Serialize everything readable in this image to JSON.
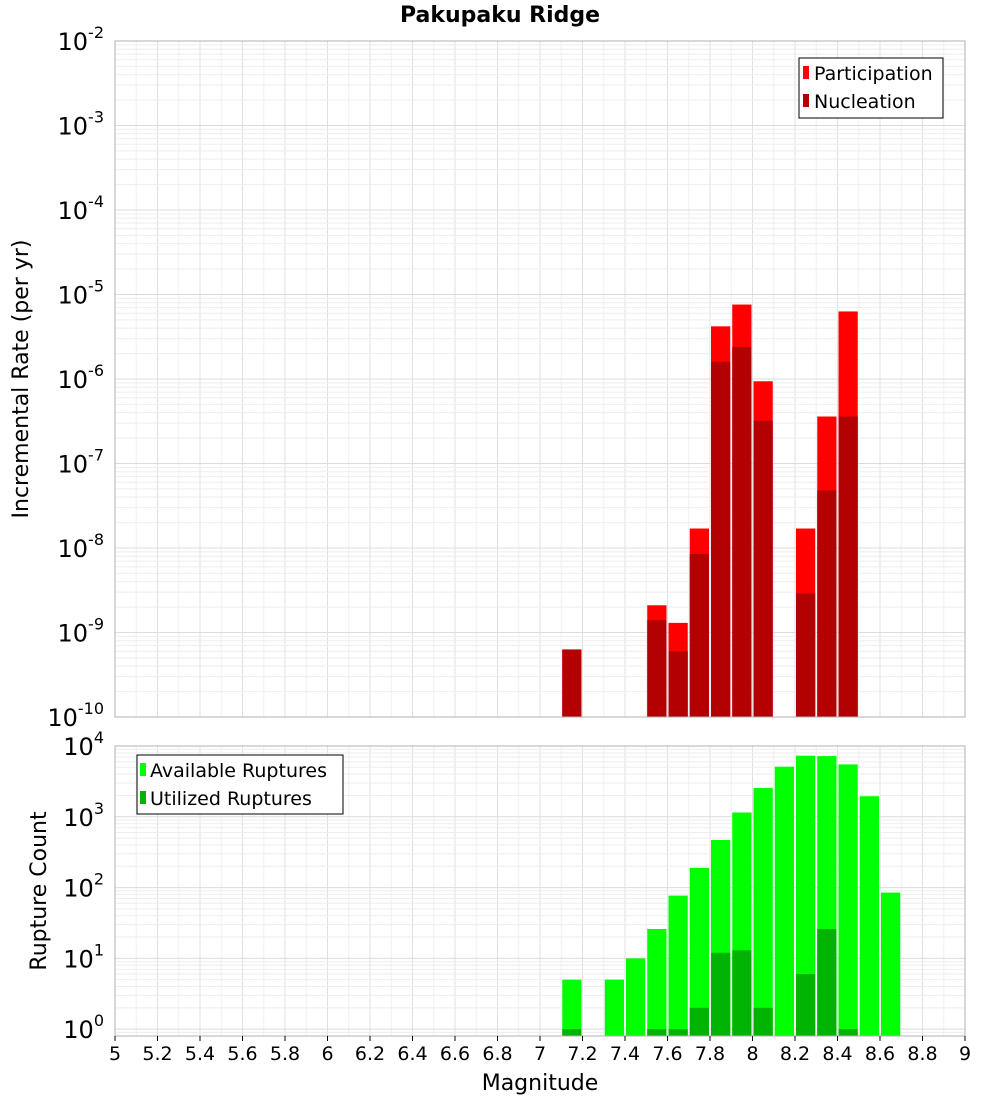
{
  "title": "Pakupaku Ridge",
  "colors": {
    "participation": "#ff0000",
    "nucleation": "#b30000",
    "available": "#00ff00",
    "utilized": "#00b300",
    "grid": "#e6e6e6",
    "frame": "#b0b0b0"
  },
  "chart_data": [
    {
      "type": "bar",
      "ylabel": "Incremental Rate (per yr)",
      "yscale": "log",
      "ylim": [
        1e-10,
        0.01
      ],
      "grid": true,
      "legend_placement": "top-right",
      "y_tick_exponents": [
        "-2",
        "-3",
        "-4",
        "-5",
        "-6",
        "-7",
        "-8",
        "-9",
        "-10"
      ],
      "series": [
        {
          "name": "Participation",
          "x": [
            7.15,
            7.55,
            7.65,
            7.75,
            7.85,
            7.95,
            8.05,
            8.25,
            8.35,
            8.45
          ],
          "values": [
            6.3e-10,
            2.1e-09,
            1.3e-09,
            1.7e-08,
            4.2e-06,
            7.6e-06,
            9.4e-07,
            1.7e-08,
            3.6e-07,
            6.3e-06
          ]
        },
        {
          "name": "Nucleation",
          "x": [
            7.15,
            7.55,
            7.65,
            7.75,
            7.85,
            7.95,
            8.05,
            8.25,
            8.35,
            8.45
          ],
          "values": [
            6.3e-10,
            1.4e-09,
            6e-10,
            8.5e-09,
            1.6e-06,
            2.4e-06,
            3.2e-07,
            2.9e-09,
            4.8e-08,
            3.6e-07
          ]
        }
      ]
    },
    {
      "type": "bar",
      "xlabel": "Magnitude",
      "ylabel": "Rupture Count",
      "yscale": "log",
      "ylim": [
        0.8,
        10000
      ],
      "xlim": [
        5,
        9
      ],
      "grid": true,
      "legend_placement": "top-left",
      "x_ticks": [
        "5",
        "5.2",
        "5.4",
        "5.6",
        "5.8",
        "6",
        "6.2",
        "6.4",
        "6.6",
        "6.8",
        "7",
        "7.2",
        "7.4",
        "7.6",
        "7.8",
        "8",
        "8.2",
        "8.4",
        "8.6",
        "8.8",
        "9"
      ],
      "y_tick_exponents": [
        "0",
        "1",
        "2",
        "3",
        "4"
      ],
      "series": [
        {
          "name": "Available Ruptures",
          "x": [
            7.15,
            7.35,
            7.45,
            7.55,
            7.65,
            7.75,
            7.85,
            7.95,
            8.05,
            8.15,
            8.25,
            8.35,
            8.45,
            8.55,
            8.65
          ],
          "values": [
            5,
            5,
            10,
            26,
            77,
            190,
            470,
            1150,
            2550,
            5100,
            7300,
            7200,
            5500,
            1950,
            85
          ]
        },
        {
          "name": "Utilized Ruptures",
          "x": [
            7.15,
            7.55,
            7.65,
            7.75,
            7.85,
            7.95,
            8.05,
            8.25,
            8.35,
            8.45
          ],
          "values": [
            1,
            1,
            1,
            2,
            12,
            13,
            2,
            6,
            26,
            1
          ]
        }
      ]
    }
  ]
}
